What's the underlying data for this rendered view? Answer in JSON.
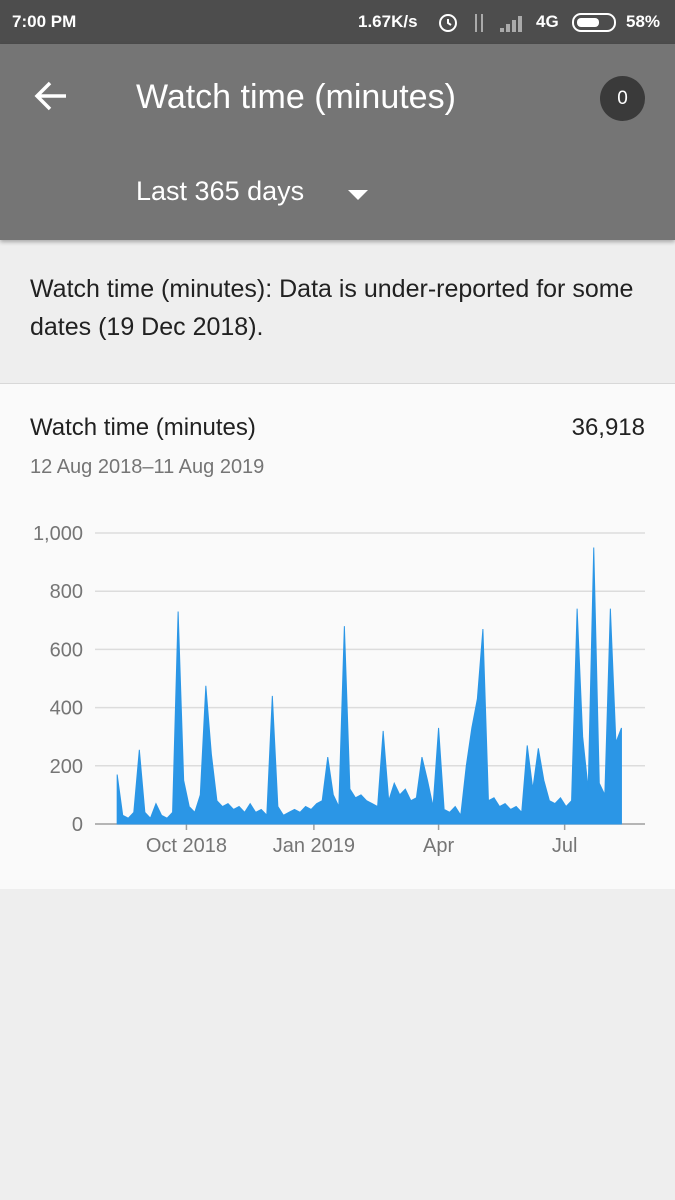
{
  "status_bar": {
    "time": "7:00 PM",
    "speed": "1.67K/s",
    "network": "4G",
    "battery": "58%"
  },
  "app_bar": {
    "title": "Watch time (minutes)",
    "badge": "0",
    "period": "Last 365 days"
  },
  "notice": "Watch time (minutes): Data is under-reported for some dates (19 Dec 2018).",
  "card": {
    "title": "Watch time (minutes)",
    "total": "36,918",
    "range": "12 Aug 2018–11 Aug 2019",
    "chart_data": {
      "type": "area",
      "color": "#2b96e6",
      "grid": true,
      "x": [
        0,
        4,
        8,
        12,
        16,
        20,
        24,
        28,
        32,
        36,
        40,
        44,
        48,
        52,
        56,
        60,
        64,
        68,
        72,
        76,
        80,
        84,
        88,
        92,
        96,
        100,
        104,
        108,
        112,
        116,
        120,
        124,
        128,
        132,
        136,
        140,
        144,
        148,
        152,
        156,
        160,
        164,
        168,
        172,
        176,
        180,
        184,
        188,
        192,
        196,
        200,
        204,
        208,
        212,
        216,
        220,
        224,
        228,
        232,
        236,
        240,
        244,
        248,
        252,
        256,
        260,
        264,
        268,
        272,
        276,
        280,
        284,
        288,
        292,
        296,
        300,
        304,
        308,
        312,
        316,
        320,
        324,
        328,
        332,
        336,
        340,
        344,
        348,
        352,
        356,
        360,
        364
      ],
      "values": [
        170,
        30,
        20,
        40,
        255,
        40,
        20,
        70,
        30,
        20,
        40,
        730,
        150,
        60,
        40,
        100,
        475,
        240,
        80,
        60,
        70,
        50,
        60,
        40,
        70,
        40,
        50,
        30,
        440,
        60,
        30,
        40,
        50,
        40,
        60,
        50,
        70,
        80,
        230,
        100,
        60,
        680,
        120,
        90,
        100,
        80,
        70,
        60,
        320,
        80,
        140,
        100,
        120,
        80,
        90,
        230,
        150,
        60,
        330,
        50,
        40,
        60,
        30,
        200,
        330,
        430,
        670,
        80,
        90,
        60,
        70,
        50,
        60,
        40,
        270,
        120,
        260,
        150,
        80,
        70,
        90,
        60,
        80,
        740,
        300,
        120,
        950,
        140,
        100,
        740,
        280,
        330
      ],
      "xlim": [
        -16,
        381
      ],
      "xticks": [
        {
          "value": 50,
          "label": "Oct 2018"
        },
        {
          "value": 142,
          "label": "Jan 2019"
        },
        {
          "value": 232,
          "label": "Apr"
        },
        {
          "value": 323,
          "label": "Jul"
        }
      ],
      "ylim": [
        0,
        1000
      ],
      "yticks": [
        0,
        200,
        400,
        600,
        800,
        {
          "value": 1000,
          "label": "1,000"
        }
      ]
    }
  }
}
